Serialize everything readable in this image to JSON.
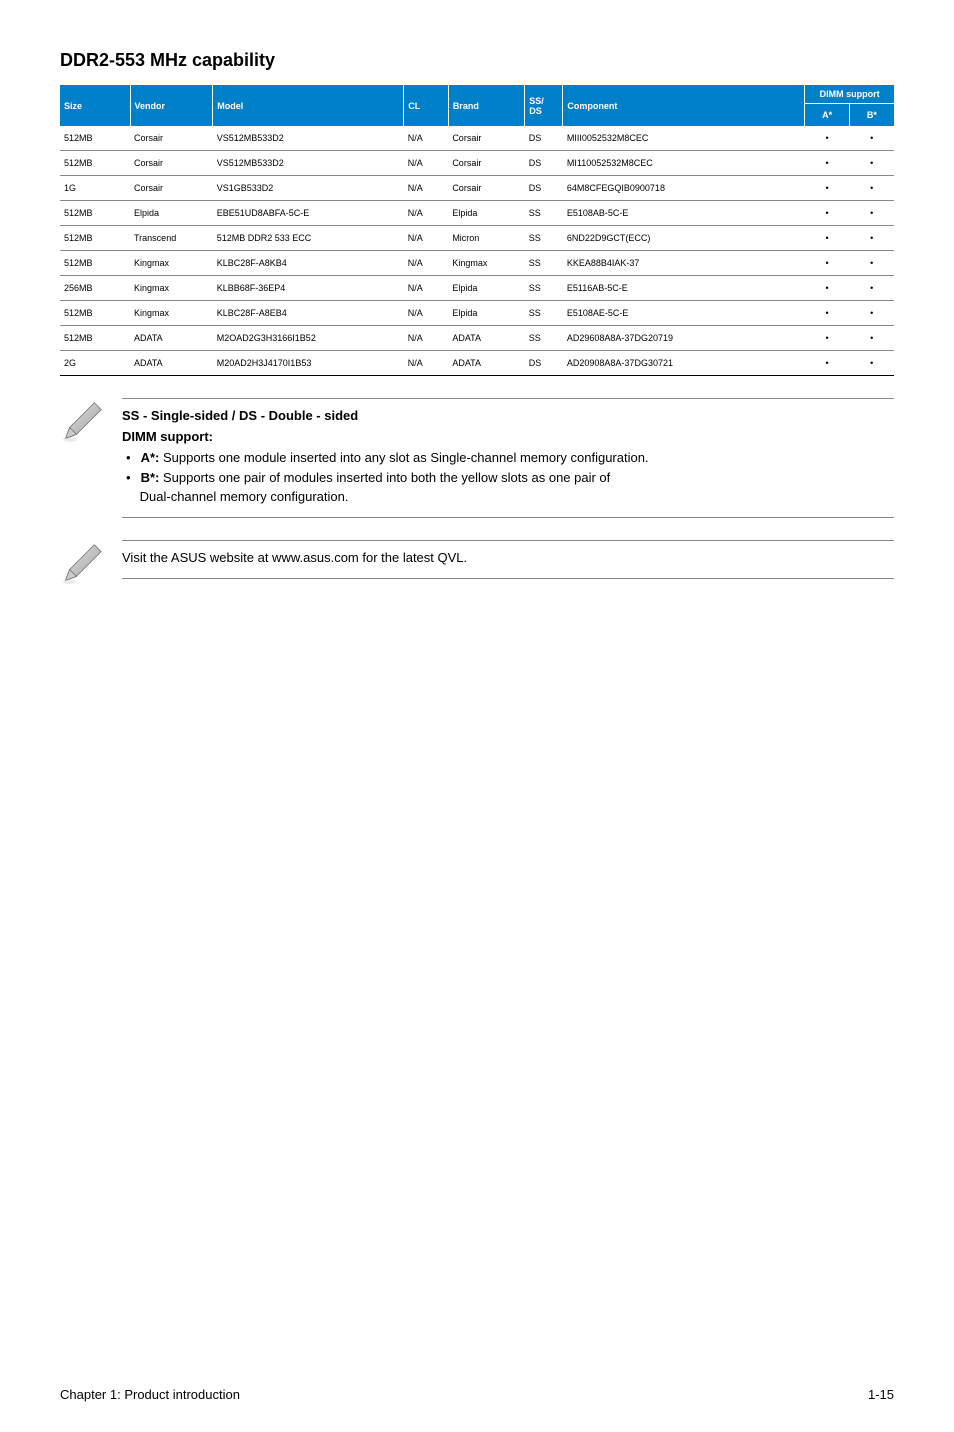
{
  "heading": "DDR2-553 MHz capability",
  "table": {
    "headers": {
      "size": "Size",
      "vendor": "Vendor",
      "model": "Model",
      "cl": "CL",
      "brand": "Brand",
      "ssds": "SS/\nDS",
      "component": "Component",
      "dimm_support": "DIMM support",
      "a": "A*",
      "b": "B*"
    },
    "col_widths": [
      "55px",
      "65px",
      "150px",
      "35px",
      "60px",
      "30px",
      "190px",
      "35px",
      "35px"
    ],
    "header_bg": "#0080c8",
    "header_fg": "#ffffff",
    "row_border": "#888888",
    "font_size_pt": 7,
    "rows": [
      {
        "size": "512MB",
        "vendor": "Corsair",
        "model": "VS512MB533D2",
        "cl": "N/A",
        "brand": "Corsair",
        "ssds": "DS",
        "component": "MIII0052532M8CEC",
        "a": "•",
        "b": "•"
      },
      {
        "size": "512MB",
        "vendor": "Corsair",
        "model": "VS512MB533D2",
        "cl": "N/A",
        "brand": "Corsair",
        "ssds": "DS",
        "component": "MI110052532M8CEC",
        "a": "•",
        "b": "•"
      },
      {
        "size": "1G",
        "vendor": "Corsair",
        "model": "VS1GB533D2",
        "cl": "N/A",
        "brand": "Corsair",
        "ssds": "DS",
        "component": "64M8CFEGQIB0900718",
        "a": "•",
        "b": "•"
      },
      {
        "size": "512MB",
        "vendor": "Elpida",
        "model": "EBE51UD8ABFA-5C-E",
        "cl": "N/A",
        "brand": "Elpida",
        "ssds": "SS",
        "component": "E5108AB-5C-E",
        "a": "•",
        "b": "•"
      },
      {
        "size": "512MB",
        "vendor": "Transcend",
        "model": "512MB DDR2 533 ECC",
        "cl": "N/A",
        "brand": "Micron",
        "ssds": "SS",
        "component": "6ND22D9GCT(ECC)",
        "a": "•",
        "b": "•"
      },
      {
        "size": "512MB",
        "vendor": "Kingmax",
        "model": "KLBC28F-A8KB4",
        "cl": "N/A",
        "brand": "Kingmax",
        "ssds": "SS",
        "component": "KKEA88B4IAK-37",
        "a": "•",
        "b": "•"
      },
      {
        "size": "256MB",
        "vendor": "Kingmax",
        "model": "KLBB68F-36EP4",
        "cl": "N/A",
        "brand": "Elpida",
        "ssds": "SS",
        "component": "E5116AB-5C-E",
        "a": "•",
        "b": "•"
      },
      {
        "size": "512MB",
        "vendor": "Kingmax",
        "model": "KLBC28F-A8EB4",
        "cl": "N/A",
        "brand": "Elpida",
        "ssds": "SS",
        "component": "E5108AE-5C-E",
        "a": "•",
        "b": "•"
      },
      {
        "size": "512MB",
        "vendor": "ADATA",
        "model": "M2OAD2G3H3166I1B52",
        "cl": "N/A",
        "brand": "ADATA",
        "ssds": "SS",
        "component": "AD29608A8A-37DG20719",
        "a": "•",
        "b": "•"
      },
      {
        "size": "2G",
        "vendor": "ADATA",
        "model": "M20AD2H3J4170I1B53",
        "cl": "N/A",
        "brand": "ADATA",
        "ssds": "DS",
        "component": "AD20908A8A-37DG30721",
        "a": "•",
        "b": "•"
      }
    ]
  },
  "note1": {
    "heading1": "SS - Single-sided / DS - Double - sided",
    "heading2": "DIMM support:",
    "bullets": [
      {
        "label": "A*:",
        "text": "Supports one module inserted into any slot as Single-channel memory configuration."
      },
      {
        "label": "B*:",
        "text": "Supports one pair of modules inserted into both the yellow slots as one pair of",
        "cont": "Dual-channel memory configuration."
      }
    ]
  },
  "note2": {
    "text": "Visit the ASUS website at www.asus.com for the latest QVL."
  },
  "footer": {
    "left": "Chapter 1: Product introduction",
    "right": "1-15"
  }
}
